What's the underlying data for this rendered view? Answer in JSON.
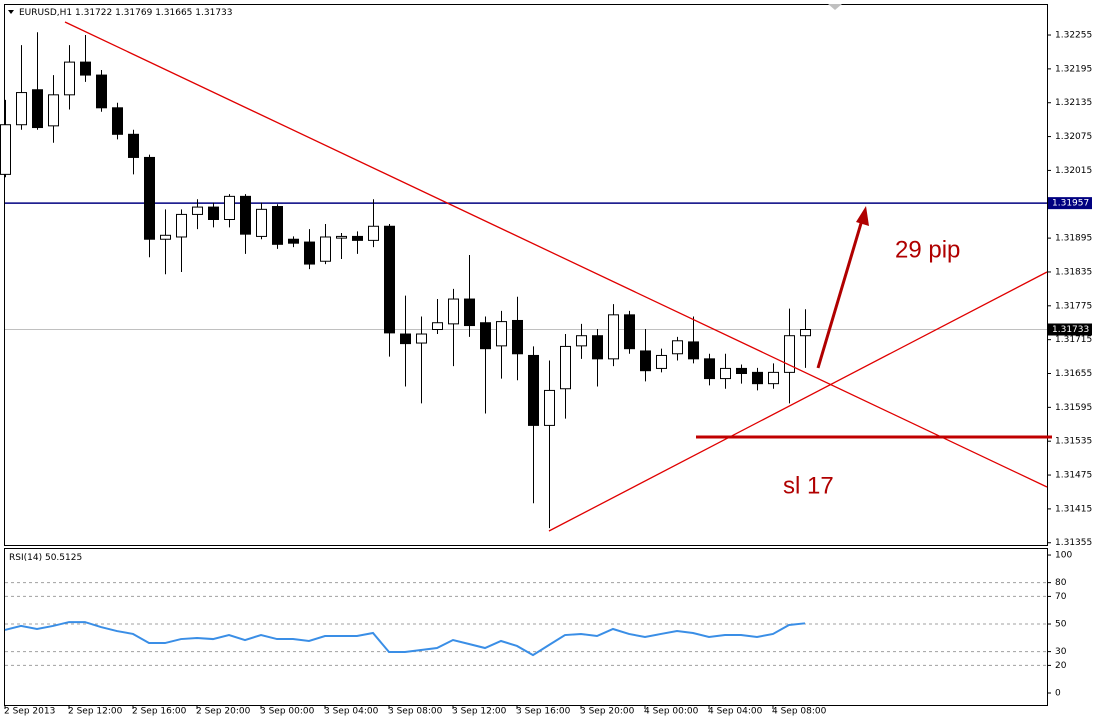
{
  "chart_data": [
    {
      "type": "candlestick",
      "title": "EURUSD,H1",
      "categories": [
        "2 Sep 2013",
        null,
        null,
        null,
        "2 Sep 12:00",
        null,
        null,
        null,
        "2 Sep 16:00",
        null,
        null,
        null,
        "2 Sep 20:00",
        null,
        null,
        null,
        "3 Sep 00:00",
        null,
        null,
        null,
        "3 Sep 04:00",
        null,
        null,
        null,
        "3 Sep 08:00",
        null,
        null,
        null,
        "3 Sep 12:00",
        null,
        null,
        null,
        "3 Sep 16:00",
        null,
        null,
        null,
        "3 Sep 20:00",
        null,
        null,
        null,
        "4 Sep 00:00",
        null,
        null,
        null,
        "4 Sep 04:00",
        null,
        null,
        null,
        "4 Sep 08:00",
        null,
        null
      ],
      "open": [
        1.32008,
        1.32096,
        1.32158,
        1.32094,
        1.32149,
        1.32207,
        1.32184,
        1.32126,
        1.32079,
        1.32038,
        1.31893,
        1.31897,
        1.31937,
        1.3195,
        1.31928,
        1.31969,
        1.31898,
        1.31951,
        1.31893,
        1.31888,
        1.31854,
        1.31895,
        1.31898,
        1.31891,
        1.31916,
        1.31725,
        1.31709,
        1.31733,
        1.31743,
        1.31787,
        1.31745,
        1.31704,
        1.31749,
        1.31687,
        1.31563,
        1.31628,
        1.31704,
        1.31722,
        1.31681,
        1.31759,
        1.31695,
        1.31664,
        1.3169,
        1.31711,
        1.31681,
        1.31646,
        1.31664,
        1.31657,
        1.31637,
        1.31657,
        1.31722
      ],
      "high": [
        1.3214,
        1.32237,
        1.3226,
        1.32184,
        1.32237,
        1.32255,
        1.32193,
        1.32135,
        1.32087,
        1.32043,
        1.31946,
        1.31946,
        1.31964,
        1.31958,
        1.31973,
        1.31973,
        1.31958,
        1.31955,
        1.31898,
        1.31911,
        1.3192,
        1.31904,
        1.31907,
        1.31964,
        1.3192,
        1.31793,
        1.31756,
        1.31787,
        1.31805,
        1.31865,
        1.31756,
        1.31766,
        1.31791,
        1.31703,
        1.31678,
        1.31725,
        1.31743,
        1.31734,
        1.31778,
        1.31766,
        1.31734,
        1.31699,
        1.3172,
        1.31756,
        1.3169,
        1.3169,
        1.31671,
        1.31665,
        1.31673,
        1.3177,
        1.31769
      ],
      "low": [
        1.32003,
        1.32087,
        1.32087,
        1.32064,
        1.32123,
        1.32172,
        1.32119,
        1.3207,
        1.32008,
        1.31861,
        1.31831,
        1.31835,
        1.31911,
        1.31914,
        1.31914,
        1.31867,
        1.31893,
        1.31876,
        1.31879,
        1.3184,
        1.31849,
        1.31858,
        1.31867,
        1.31879,
        1.31685,
        1.31632,
        1.31602,
        1.31725,
        1.31668,
        1.3172,
        1.31584,
        1.31646,
        1.31643,
        1.31425,
        1.31381,
        1.31575,
        1.31681,
        1.31632,
        1.31668,
        1.3169,
        1.31641,
        1.31657,
        1.31678,
        1.31673,
        1.31634,
        1.31628,
        1.31637,
        1.31625,
        1.31628,
        1.31602,
        1.31665
      ],
      "close": [
        1.32096,
        1.32153,
        1.32091,
        1.32149,
        1.32207,
        1.32184,
        1.32126,
        1.32079,
        1.32038,
        1.31893,
        1.319,
        1.31937,
        1.3195,
        1.31928,
        1.31969,
        1.31902,
        1.31946,
        1.31884,
        1.31886,
        1.31849,
        1.31897,
        1.31898,
        1.31891,
        1.31916,
        1.31727,
        1.31708,
        1.31725,
        1.31745,
        1.31787,
        1.3174,
        1.31699,
        1.31747,
        1.3169,
        1.31563,
        1.31625,
        1.31703,
        1.31722,
        1.31681,
        1.31759,
        1.31699,
        1.3166,
        1.31687,
        1.31713,
        1.31681,
        1.31646,
        1.31664,
        1.31655,
        1.31637,
        1.31657,
        1.31722,
        1.31733
      ],
      "up_color": "#ffffff",
      "down_color": "#000000",
      "ylim": [
        1.31351,
        1.3231
      ],
      "yticks": [
        1.32255,
        1.32195,
        1.32135,
        1.32075,
        1.32015,
        1.31895,
        1.31835,
        1.31775,
        1.31715,
        1.31655,
        1.31595,
        1.31535,
        1.31475,
        1.31415,
        1.31355
      ],
      "hlines": [
        {
          "value": 1.31957,
          "color": "#000080"
        }
      ],
      "annotations": [
        "29 pip",
        "sl 17"
      ]
    },
    {
      "type": "line",
      "title": "RSI(14)",
      "color": "#3a8ee6",
      "values": [
        45.7,
        48.6,
        46.4,
        48.6,
        51.4,
        51.4,
        47.8,
        44.9,
        42.8,
        36.2,
        36.2,
        39.1,
        39.9,
        39.1,
        42.0,
        38.4,
        42.0,
        39.1,
        39.1,
        37.7,
        41.3,
        41.3,
        41.3,
        43.5,
        29.7,
        29.7,
        31.2,
        32.6,
        38.4,
        35.5,
        32.6,
        37.7,
        34.1,
        27.5,
        34.8,
        42.0,
        42.8,
        41.3,
        46.4,
        42.8,
        40.6,
        42.8,
        44.9,
        43.5,
        40.6,
        42.0,
        42.0,
        40.6,
        42.8,
        49.3,
        50.5125
      ],
      "ylim": [
        -8.7,
        105.1
      ],
      "yticks": [
        100,
        80,
        70,
        50,
        30,
        20,
        0
      ],
      "grid": true
    }
  ]
}
